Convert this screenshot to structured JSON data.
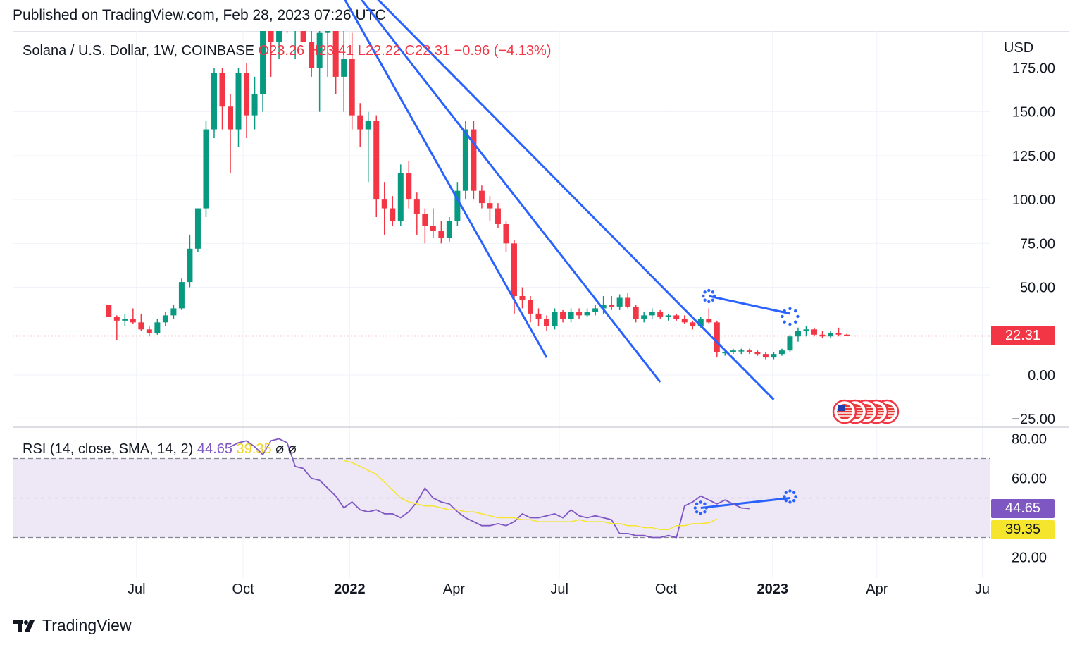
{
  "header": {
    "published": "Published on TradingView.com, Feb 28, 2023 07:26 UTC"
  },
  "legend": {
    "symbol": "Solana / U.S. Dollar, 1W, COINBASE",
    "open": "O23.26",
    "high": "H23.41",
    "low": "L22.22",
    "close": "C22.31",
    "change": "−0.96 (−4.13%)"
  },
  "rsi_legend": {
    "label": "RSI (14, close, SMA, 14, 2)",
    "value": "44.65",
    "sma": "39.35",
    "icon1": "⌀",
    "icon2": "⌀"
  },
  "price_axis": {
    "currency": "USD",
    "ticks": [
      "175.00",
      "150.00",
      "125.00",
      "100.00",
      "75.00",
      "50.00",
      "0.00",
      "−25.00"
    ],
    "last_price": "22.31"
  },
  "rsi_axis": {
    "ticks": [
      "80.00",
      "60.00",
      "20.00"
    ],
    "value_tag": "44.65",
    "sma_tag": "39.35"
  },
  "time_axis": {
    "labels": [
      {
        "text": "Jul",
        "bold": false
      },
      {
        "text": "Oct",
        "bold": false
      },
      {
        "text": "2022",
        "bold": true
      },
      {
        "text": "Apr",
        "bold": false
      },
      {
        "text": "Jul",
        "bold": false
      },
      {
        "text": "Oct",
        "bold": false
      },
      {
        "text": "2023",
        "bold": true
      },
      {
        "text": "Apr",
        "bold": false
      },
      {
        "text": "Ju",
        "bold": false
      }
    ]
  },
  "brand": {
    "name": "TradingView"
  },
  "colors": {
    "up": "#089981",
    "down": "#f23645",
    "trendline": "#2962ff",
    "rsi": "#7e57c2",
    "rsi_sma": "#f5e62d",
    "rsi_band": "#ede7f6"
  },
  "chart_data": [
    {
      "type": "candlestick",
      "title": "Solana / U.S. Dollar, 1W, COINBASE",
      "ylabel": "USD",
      "ylim": [
        -35,
        190
      ],
      "last_price": 22.31,
      "grid": true,
      "x_start": "2021-06-07",
      "interval_days": 7,
      "ohlc": [
        [
          40,
          40,
          33,
          33
        ],
        [
          33,
          34,
          20,
          31
        ],
        [
          31,
          35,
          28,
          32
        ],
        [
          32,
          38,
          29,
          30
        ],
        [
          30,
          35,
          25,
          26
        ],
        [
          26,
          28,
          22,
          24
        ],
        [
          24,
          32,
          23,
          30
        ],
        [
          30,
          36,
          28,
          34
        ],
        [
          34,
          40,
          32,
          38
        ],
        [
          38,
          55,
          37,
          53
        ],
        [
          53,
          80,
          50,
          72
        ],
        [
          72,
          95,
          70,
          95
        ],
        [
          95,
          145,
          90,
          140
        ],
        [
          140,
          175,
          135,
          172
        ],
        [
          172,
          175,
          140,
          153
        ],
        [
          153,
          160,
          115,
          140
        ],
        [
          140,
          175,
          130,
          172
        ],
        [
          172,
          178,
          135,
          148
        ],
        [
          148,
          170,
          140,
          160
        ],
        [
          160,
          210,
          150,
          205
        ],
        [
          205,
          215,
          170,
          190
        ],
        [
          190,
          245,
          180,
          232
        ],
        [
          232,
          255,
          195,
          200
        ],
        [
          200,
          225,
          180,
          210
        ],
        [
          210,
          230,
          190,
          190
        ],
        [
          190,
          205,
          170,
          175
        ],
        [
          175,
          200,
          150,
          195
        ],
        [
          195,
          215,
          170,
          210
        ],
        [
          210,
          215,
          160,
          170
        ],
        [
          170,
          200,
          150,
          180
        ],
        [
          180,
          195,
          140,
          148
        ],
        [
          148,
          155,
          130,
          140
        ],
        [
          140,
          150,
          110,
          145
        ],
        [
          145,
          148,
          90,
          100
        ],
        [
          100,
          110,
          80,
          95
        ],
        [
          95,
          102,
          85,
          88
        ],
        [
          88,
          120,
          85,
          115
        ],
        [
          115,
          122,
          95,
          100
        ],
        [
          100,
          104,
          80,
          92
        ],
        [
          92,
          95,
          75,
          85
        ],
        [
          85,
          95,
          78,
          82
        ],
        [
          82,
          88,
          75,
          78
        ],
        [
          78,
          90,
          76,
          88
        ],
        [
          88,
          110,
          85,
          105
        ],
        [
          105,
          145,
          100,
          140
        ],
        [
          140,
          145,
          100,
          105
        ],
        [
          105,
          108,
          95,
          98
        ],
        [
          98,
          102,
          88,
          95
        ],
        [
          95,
          98,
          84,
          86
        ],
        [
          86,
          88,
          70,
          75
        ],
        [
          75,
          77,
          35,
          45
        ],
        [
          45,
          50,
          38,
          43
        ],
        [
          43,
          45,
          30,
          35
        ],
        [
          35,
          38,
          28,
          32
        ],
        [
          32,
          34,
          25,
          28
        ],
        [
          28,
          38,
          26,
          36
        ],
        [
          36,
          37,
          30,
          32
        ],
        [
          32,
          38,
          30,
          36
        ],
        [
          36,
          38,
          32,
          34
        ],
        [
          34,
          38,
          33,
          36
        ],
        [
          36,
          40,
          34,
          38
        ],
        [
          38,
          45,
          35,
          40
        ],
        [
          40,
          45,
          37,
          39
        ],
        [
          39,
          46,
          37,
          44
        ],
        [
          44,
          47,
          38,
          39
        ],
        [
          39,
          40,
          30,
          32
        ],
        [
          32,
          36,
          30,
          34
        ],
        [
          34,
          38,
          32,
          36
        ],
        [
          36,
          37,
          32,
          33
        ],
        [
          33,
          35,
          31,
          34
        ],
        [
          34,
          35,
          31,
          32
        ],
        [
          32,
          34,
          29,
          30
        ],
        [
          30,
          31,
          26,
          28
        ],
        [
          28,
          33,
          27,
          32
        ],
        [
          32,
          38,
          29,
          30
        ],
        [
          30,
          31,
          10,
          13
        ],
        [
          13,
          14,
          11,
          13
        ],
        [
          13,
          15,
          12,
          14
        ],
        [
          14,
          15,
          12,
          14
        ],
        [
          14,
          15,
          12,
          13
        ],
        [
          13,
          14,
          11,
          12
        ],
        [
          12,
          13,
          9,
          10
        ],
        [
          10,
          13,
          9,
          12
        ],
        [
          12,
          15,
          11,
          14
        ],
        [
          14,
          23,
          13,
          22
        ],
        [
          22,
          27,
          19,
          25
        ],
        [
          25,
          28,
          22,
          26
        ],
        [
          26,
          27,
          22,
          23
        ],
        [
          23,
          25,
          21,
          22
        ],
        [
          22,
          25,
          21,
          24
        ],
        [
          24,
          27,
          22,
          23
        ],
        [
          23,
          23.41,
          22.22,
          22.31
        ]
      ]
    },
    {
      "type": "line",
      "title": "RSI (14, close, SMA, 14, 2)",
      "ylim": [
        10,
        90
      ],
      "bands": [
        30,
        50,
        70
      ],
      "series": [
        {
          "name": "RSI",
          "x_start": "2021-09-20",
          "values": [
            76,
            78,
            79,
            76,
            72,
            79,
            80,
            78,
            66,
            65,
            60,
            59,
            55,
            51,
            45,
            48,
            44,
            43,
            44,
            42,
            42,
            40,
            43,
            48,
            55,
            50,
            48,
            47,
            43,
            40,
            38,
            36,
            36,
            37,
            36,
            38,
            42,
            40,
            40,
            41,
            42,
            40,
            44,
            41,
            40,
            41,
            40,
            39,
            32,
            32,
            31,
            31,
            30,
            30,
            31,
            30,
            46,
            48,
            51,
            49,
            47,
            49,
            47,
            45,
            44.65
          ]
        },
        {
          "name": "RSI SMA",
          "x_start": "2021-12-27",
          "values": [
            69,
            68,
            66,
            64,
            62,
            58,
            54,
            50,
            48,
            47,
            46,
            46,
            45,
            44,
            44,
            43,
            43,
            42,
            41,
            40,
            40,
            40,
            39,
            39,
            38,
            38,
            38,
            38,
            38,
            39,
            38,
            38,
            38,
            37,
            37,
            36,
            36,
            35,
            35,
            34,
            34,
            36,
            36,
            37,
            37,
            37.5,
            39.35
          ]
        }
      ]
    }
  ]
}
